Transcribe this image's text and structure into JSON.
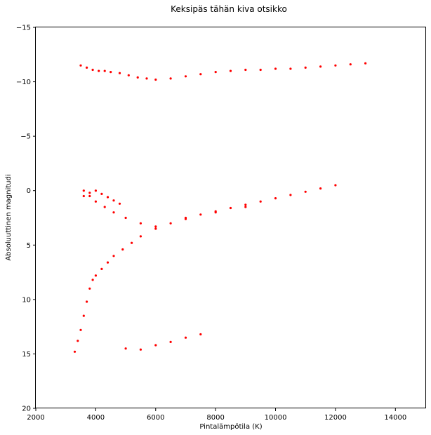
{
  "chart_data": {
    "type": "scatter",
    "title": "Keksipäs tähän kiva otsikko",
    "xlabel": "Pintalämpötila (K)",
    "ylabel": "Absoluuttinen magnitudi",
    "xlim": [
      2000,
      15000
    ],
    "ylim": [
      20,
      -15
    ],
    "y_inverted": true,
    "xticks": [
      2000,
      4000,
      6000,
      8000,
      10000,
      12000,
      14000
    ],
    "yticks": [
      -15,
      -10,
      -5,
      0,
      5,
      10,
      15,
      20
    ],
    "ytick_labels": [
      "−15",
      "−10",
      "−5",
      "0",
      "5",
      "10",
      "15",
      "20"
    ],
    "grid": false,
    "legend": "none",
    "marker_color": "#ff0000",
    "series": [
      {
        "x": [
          3500,
          3700,
          3900,
          4100,
          4300,
          4500,
          4800,
          5100,
          5400,
          5700,
          6000,
          6500,
          7000,
          7500,
          8000,
          8500,
          9000,
          9500,
          10000,
          10500,
          11000,
          11500,
          12000,
          12500,
          13000,
          3600,
          3800,
          4000,
          4200,
          4400,
          4600,
          4800,
          3300,
          3400,
          3500,
          3600,
          3700,
          3800,
          3900,
          4000,
          4200,
          4400,
          4600,
          4900,
          5200,
          5500,
          3600,
          3800,
          4000,
          4300,
          4600,
          5000,
          5500,
          6000,
          6500,
          7000,
          7500,
          8000,
          8500,
          9000,
          9500,
          10000,
          10500,
          11000,
          11500,
          12000,
          6000,
          7000,
          8000,
          9000,
          5000,
          5500,
          6000,
          6500,
          7000,
          7500
        ],
        "y": [
          -11.5,
          -11.3,
          -11.1,
          -11.0,
          -11.0,
          -10.9,
          -10.8,
          -10.6,
          -10.4,
          -10.3,
          -10.2,
          -10.3,
          -10.5,
          -10.7,
          -10.9,
          -11.0,
          -11.1,
          -11.1,
          -11.2,
          -11.2,
          -11.3,
          -11.4,
          -11.5,
          -11.6,
          -11.7,
          0.5,
          0.2,
          0.0,
          0.3,
          0.6,
          0.9,
          1.2,
          14.8,
          13.8,
          12.8,
          11.5,
          10.2,
          9.0,
          8.2,
          7.8,
          7.2,
          6.6,
          6.0,
          5.4,
          4.8,
          4.2,
          0.0,
          0.5,
          1.0,
          1.5,
          2.0,
          2.5,
          3.0,
          3.3,
          3.0,
          2.6,
          2.2,
          1.9,
          1.6,
          1.3,
          1.0,
          0.7,
          0.4,
          0.1,
          -0.2,
          -0.5,
          3.5,
          2.5,
          2.0,
          1.5,
          14.5,
          14.6,
          14.2,
          13.9,
          13.5,
          13.2
        ]
      }
    ]
  }
}
